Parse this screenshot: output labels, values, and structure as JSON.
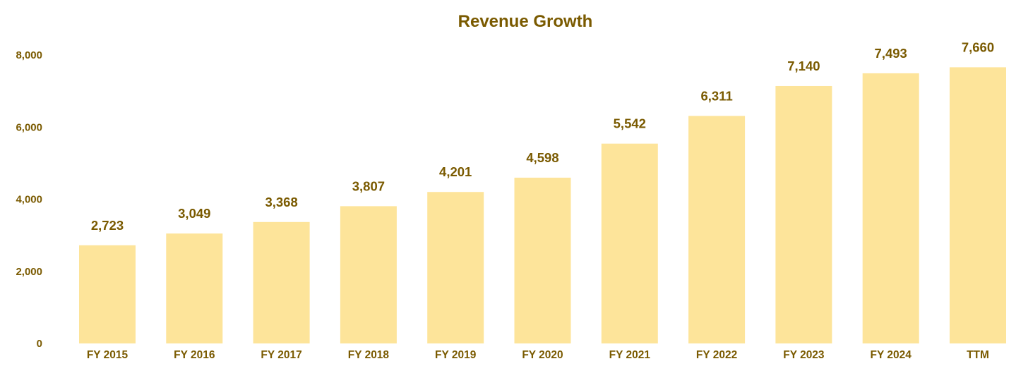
{
  "colors": {
    "bar": "#fde49a",
    "text": "#7a5a00",
    "background": "#ffffff"
  },
  "chart_data": {
    "type": "bar",
    "title": "Revenue Growth",
    "xlabel": "",
    "ylabel": "",
    "categories": [
      "FY 2015",
      "FY 2016",
      "FY 2017",
      "FY 2018",
      "FY 2019",
      "FY 2020",
      "FY 2021",
      "FY 2022",
      "FY 2023",
      "FY 2024",
      "TTM"
    ],
    "values": [
      2723,
      3049,
      3368,
      3807,
      4201,
      4598,
      5542,
      6311,
      7140,
      7493,
      7660
    ],
    "value_labels": [
      "2,723",
      "3,049",
      "3,368",
      "3,807",
      "4,201",
      "4,598",
      "5,542",
      "6,311",
      "7,140",
      "7,493",
      "7,660"
    ],
    "ylim": [
      0,
      8000
    ],
    "yticks": [
      0,
      2000,
      4000,
      6000,
      8000
    ],
    "ytick_labels": [
      "0",
      "2,000",
      "4,000",
      "6,000",
      "8,000"
    ],
    "grid": false,
    "legend": "none"
  }
}
